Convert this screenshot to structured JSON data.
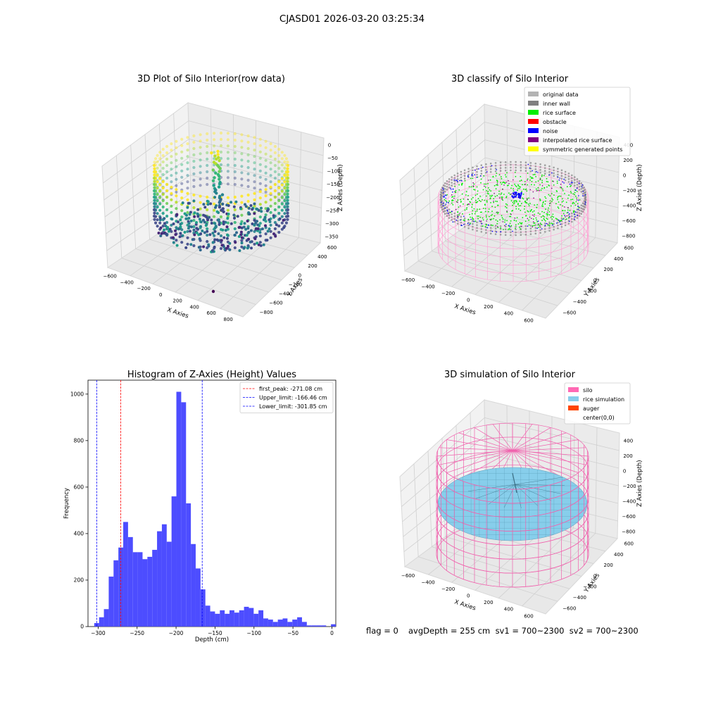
{
  "figure": {
    "suptitle": "CJASD01 2026-03-20 03:25:34",
    "footer": {
      "flag": "flag = 0",
      "stats": "avgDepth = 255 cm  sv1 = 700~2300  sv2 = 700~2300"
    }
  },
  "chart_data": [
    {
      "type": "scatter",
      "projection": "3d",
      "title": "3D Plot of Silo Interior(row data)",
      "xlabel": "X Axies",
      "ylabel": "Y Axies",
      "zlabel": "Z Axies (Depth)",
      "x_ticks": [
        "−600",
        "−400",
        "−200",
        "0",
        "200",
        "400",
        "600",
        "800"
      ],
      "y_ticks": [
        "600",
        "400",
        "200",
        "0",
        "−200",
        "−400",
        "−600",
        "−800"
      ],
      "z_ticks": [
        "0",
        "−50",
        "−100",
        "−150",
        "−200",
        "−250",
        "−300",
        "−350"
      ],
      "colormap": "viridis"
    },
    {
      "type": "scatter",
      "projection": "3d",
      "title": "3D classify of Silo Interior",
      "xlabel": "X Axies",
      "ylabel": "Y Axies",
      "zlabel": "Z Axies (Depth)",
      "x_ticks": [
        "−600",
        "−400",
        "−200",
        "0",
        "200",
        "400",
        "600"
      ],
      "y_ticks": [
        "600",
        "400",
        "200",
        "0",
        "−200",
        "−400",
        "−600"
      ],
      "z_ticks": [
        "400",
        "200",
        "0",
        "−200",
        "−400",
        "−600",
        "−800"
      ],
      "legend_position": "top-right",
      "legend": [
        {
          "name": "original data",
          "color": "#b3b3b3"
        },
        {
          "name": "inner wall",
          "color": "#808080"
        },
        {
          "name": "rice surface",
          "color": "#00ee00"
        },
        {
          "name": "obstacle",
          "color": "#ff0000"
        },
        {
          "name": "noise",
          "color": "#0000ff"
        },
        {
          "name": "interpolated rice surface",
          "color": "#800080"
        },
        {
          "name": "symmetric generated points",
          "color": "#ffff00"
        }
      ]
    },
    {
      "type": "bar",
      "title": "Histogram of Z-Axies (Height) Values",
      "xlabel": "Depth (cm)",
      "ylabel": "Frequency",
      "xlim": [
        -313,
        5
      ],
      "ylim": [
        0,
        1060
      ],
      "x_ticks": [
        -300,
        -250,
        -200,
        -150,
        -100,
        -50,
        0
      ],
      "x_tick_labels": [
        "−300",
        "−250",
        "−200",
        "−150",
        "−100",
        "−50",
        "0"
      ],
      "y_ticks": [
        0,
        200,
        400,
        600,
        800,
        1000
      ],
      "y_tick_labels": [
        "0",
        "200",
        "400",
        "600",
        "800",
        "1000"
      ],
      "bar_color": "#4d4dff",
      "bin_width": 6.2,
      "bin_starts": [
        -305,
        -298.8,
        -292.6,
        -286.4,
        -280.2,
        -274,
        -267.8,
        -261.6,
        -255.4,
        -249.2,
        -243,
        -236.8,
        -230.6,
        -224.4,
        -218.2,
        -212,
        -205.8,
        -199.6,
        -193.4,
        -187.2,
        -181,
        -174.8,
        -168.6,
        -162.4,
        -156.2,
        -150,
        -143.8,
        -137.6,
        -131.4,
        -125.2,
        -119,
        -112.8,
        -106.6,
        -100.4,
        -94.2,
        -88,
        -81.8,
        -75.6,
        -69.4,
        -63.2,
        -57,
        -50.8,
        -44.6,
        -38.4,
        -32.2,
        -26,
        -19.8,
        -13.6,
        -7.4,
        -1.2
      ],
      "counts": [
        15,
        40,
        75,
        215,
        285,
        340,
        450,
        385,
        320,
        320,
        290,
        300,
        330,
        410,
        440,
        365,
        560,
        1010,
        965,
        530,
        355,
        250,
        160,
        90,
        65,
        55,
        70,
        55,
        70,
        60,
        70,
        85,
        80,
        55,
        70,
        35,
        30,
        20,
        30,
        35,
        20,
        30,
        40,
        20,
        5,
        5,
        5,
        5,
        0,
        10
      ],
      "reference_lines": [
        {
          "name": "first_peak",
          "label": "first_peak: -271.08 cm",
          "value": -271.08,
          "color": "#ff0000"
        },
        {
          "name": "upper_limit",
          "label": "Upper_limit: -166.46 cm",
          "value": -166.46,
          "color": "#0000ff"
        },
        {
          "name": "lower_limit",
          "label": "Lower_limit: -301.85 cm",
          "value": -301.85,
          "color": "#0000ff"
        }
      ],
      "legend_position": "top-right"
    },
    {
      "type": "scatter",
      "projection": "3d",
      "title": "3D simulation of Silo Interior",
      "xlabel": "X Axies",
      "ylabel": "Y Axies",
      "zlabel": "Z Axies (Depth)",
      "x_ticks": [
        "−600",
        "−400",
        "−200",
        "0",
        "200",
        "400",
        "600"
      ],
      "y_ticks": [
        "600",
        "400",
        "200",
        "0",
        "−200",
        "−400",
        "−600"
      ],
      "z_ticks": [
        "400",
        "200",
        "0",
        "−200",
        "−400",
        "−600",
        "−800"
      ],
      "legend_position": "top-right",
      "legend": [
        {
          "name": "silo",
          "color": "#ff69b4"
        },
        {
          "name": "rice simulation",
          "color": "#87ceeb"
        },
        {
          "name": "auger",
          "color": "#ff4500"
        },
        {
          "name": "center(0,0)",
          "color": "#ffffff"
        }
      ]
    }
  ]
}
